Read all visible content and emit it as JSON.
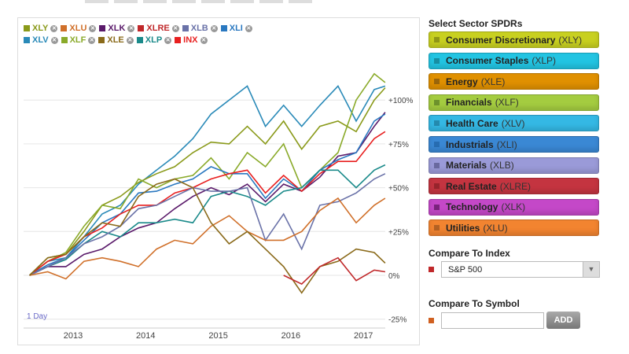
{
  "legend": [
    {
      "ticker": "XLY",
      "color": "#8a9a1a"
    },
    {
      "ticker": "XLU",
      "color": "#d0702a"
    },
    {
      "ticker": "XLK",
      "color": "#5a1a6a"
    },
    {
      "ticker": "XLRE",
      "color": "#c0282a"
    },
    {
      "ticker": "XLB",
      "color": "#6a72a8"
    },
    {
      "ticker": "XLI",
      "color": "#2a78c0"
    },
    {
      "ticker": "XLV",
      "color": "#2a8ab8"
    },
    {
      "ticker": "XLF",
      "color": "#8aaa2a"
    },
    {
      "ticker": "XLE",
      "color": "#8a6a1a"
    },
    {
      "ticker": "XLP",
      "color": "#1a8a8a"
    },
    {
      "ticker": "INX",
      "color": "#e82020"
    }
  ],
  "remove_icon": "x-circle-icon",
  "range_label": "1 Day",
  "chart_data": {
    "type": "line",
    "xlabel": "",
    "ylabel": "",
    "x_ticks": [
      "2013",
      "2014",
      "2015",
      "2016",
      "2017"
    ],
    "y_ticks": [
      {
        "v": 100,
        "label": "+100%"
      },
      {
        "v": 75,
        "label": "+75%"
      },
      {
        "v": 50,
        "label": "+50%"
      },
      {
        "v": 25,
        "label": "+25%"
      },
      {
        "v": 0,
        "label": "0%"
      },
      {
        "v": -25,
        "label": "-25%"
      }
    ],
    "xlim": [
      2012.35,
      2017.35
    ],
    "ylim": [
      -30,
      128
    ],
    "grid": true,
    "legend_position": "top-left",
    "x": [
      2012.4,
      2012.65,
      2012.9,
      2013.15,
      2013.4,
      2013.65,
      2013.9,
      2014.15,
      2014.4,
      2014.65,
      2014.9,
      2015.15,
      2015.4,
      2015.65,
      2015.9,
      2016.15,
      2016.4,
      2016.65,
      2016.9,
      2017.15,
      2017.3
    ],
    "series": [
      {
        "name": "XLV",
        "color": "#2a8ab8",
        "values": [
          0,
          8,
          10,
          22,
          35,
          40,
          52,
          60,
          68,
          78,
          92,
          100,
          108,
          85,
          97,
          85,
          97,
          108,
          88,
          106,
          108
        ]
      },
      {
        "name": "XLY",
        "color": "#8a9a1a",
        "values": [
          0,
          10,
          12,
          25,
          40,
          45,
          53,
          58,
          62,
          70,
          76,
          75,
          85,
          75,
          88,
          72,
          85,
          88,
          82,
          100,
          107
        ]
      },
      {
        "name": "XLF",
        "color": "#8aaa2a",
        "values": [
          0,
          8,
          13,
          28,
          40,
          38,
          55,
          50,
          55,
          57,
          67,
          55,
          70,
          62,
          75,
          50,
          60,
          70,
          100,
          115,
          110
        ]
      },
      {
        "name": "XLK",
        "color": "#5a1a6a",
        "values": [
          0,
          5,
          5,
          12,
          15,
          22,
          27,
          30,
          38,
          45,
          50,
          46,
          52,
          42,
          52,
          48,
          56,
          68,
          70,
          85,
          93
        ]
      },
      {
        "name": "XLI",
        "color": "#2a78c0",
        "values": [
          0,
          6,
          10,
          20,
          30,
          35,
          47,
          48,
          52,
          55,
          62,
          58,
          58,
          44,
          55,
          48,
          60,
          66,
          70,
          88,
          92
        ]
      },
      {
        "name": "INX",
        "color": "#e82020",
        "values": [
          0,
          8,
          12,
          22,
          27,
          35,
          40,
          40,
          47,
          50,
          55,
          58,
          60,
          47,
          57,
          48,
          58,
          65,
          65,
          78,
          82
        ]
      },
      {
        "name": "XLP",
        "color": "#1a8a8a",
        "values": [
          0,
          5,
          9,
          18,
          25,
          22,
          30,
          30,
          32,
          30,
          45,
          48,
          45,
          40,
          48,
          50,
          60,
          60,
          50,
          60,
          63
        ]
      },
      {
        "name": "XLB",
        "color": "#6a72a8",
        "values": [
          0,
          5,
          10,
          18,
          22,
          28,
          38,
          40,
          45,
          50,
          48,
          48,
          50,
          20,
          35,
          15,
          40,
          42,
          47,
          55,
          58
        ]
      },
      {
        "name": "XLU",
        "color": "#d0702a",
        "values": [
          0,
          2,
          -2,
          8,
          10,
          8,
          5,
          15,
          20,
          18,
          28,
          34,
          25,
          20,
          20,
          25,
          37,
          44,
          30,
          40,
          44
        ]
      },
      {
        "name": "XLE",
        "color": "#8a6a1a",
        "values": [
          0,
          10,
          12,
          22,
          30,
          28,
          45,
          52,
          55,
          50,
          30,
          18,
          25,
          15,
          5,
          -10,
          5,
          8,
          15,
          13,
          7
        ]
      },
      {
        "name": "XLRE",
        "color": "#c0282a",
        "values": [
          null,
          null,
          null,
          null,
          null,
          null,
          null,
          null,
          null,
          null,
          null,
          null,
          null,
          null,
          0,
          -5,
          5,
          10,
          -3,
          3,
          2
        ]
      }
    ]
  },
  "sidebar": {
    "title": "Select Sector SPDRs",
    "sectors": [
      {
        "name": "Consumer Discretionary",
        "ticker": "(XLY)",
        "color": "#c8d020",
        "sq": "#6a7010"
      },
      {
        "name": "Consumer Staples",
        "ticker": "(XLP)",
        "color": "#22c4e2",
        "sq": "#106a7a"
      },
      {
        "name": "Energy",
        "ticker": "(XLE)",
        "color": "#e09000",
        "sq": "#6a4a10"
      },
      {
        "name": "Financials",
        "ticker": "(XLF)",
        "color": "#a4cc40",
        "sq": "#4a6a20"
      },
      {
        "name": "Health Care",
        "ticker": "(XLV)",
        "color": "#34b8e4",
        "sq": "#1a6a8a"
      },
      {
        "name": "Industrials",
        "ticker": "(XLI)",
        "color": "#3a88d4",
        "sq": "#1a5a9a"
      },
      {
        "name": "Materials",
        "ticker": "(XLB)",
        "color": "#9a9ad8",
        "sq": "#4a4a7a"
      },
      {
        "name": "Real Estate",
        "ticker": "(XLRE)",
        "color": "#c43440",
        "sq": "#7a1a20"
      },
      {
        "name": "Technology",
        "ticker": "(XLK)",
        "color": "#c448c8",
        "sq": "#4a0a4a"
      },
      {
        "name": "Utilities",
        "ticker": "(XLU)",
        "color": "#f28430",
        "sq": "#8a4a1a"
      }
    ],
    "compare_index_label": "Compare To Index",
    "index_color": "#c0282a",
    "index_value": "S&P 500",
    "compare_symbol_label": "Compare To Symbol",
    "symbol_color": "#d06020",
    "symbol_value": "",
    "add_label": "ADD"
  }
}
